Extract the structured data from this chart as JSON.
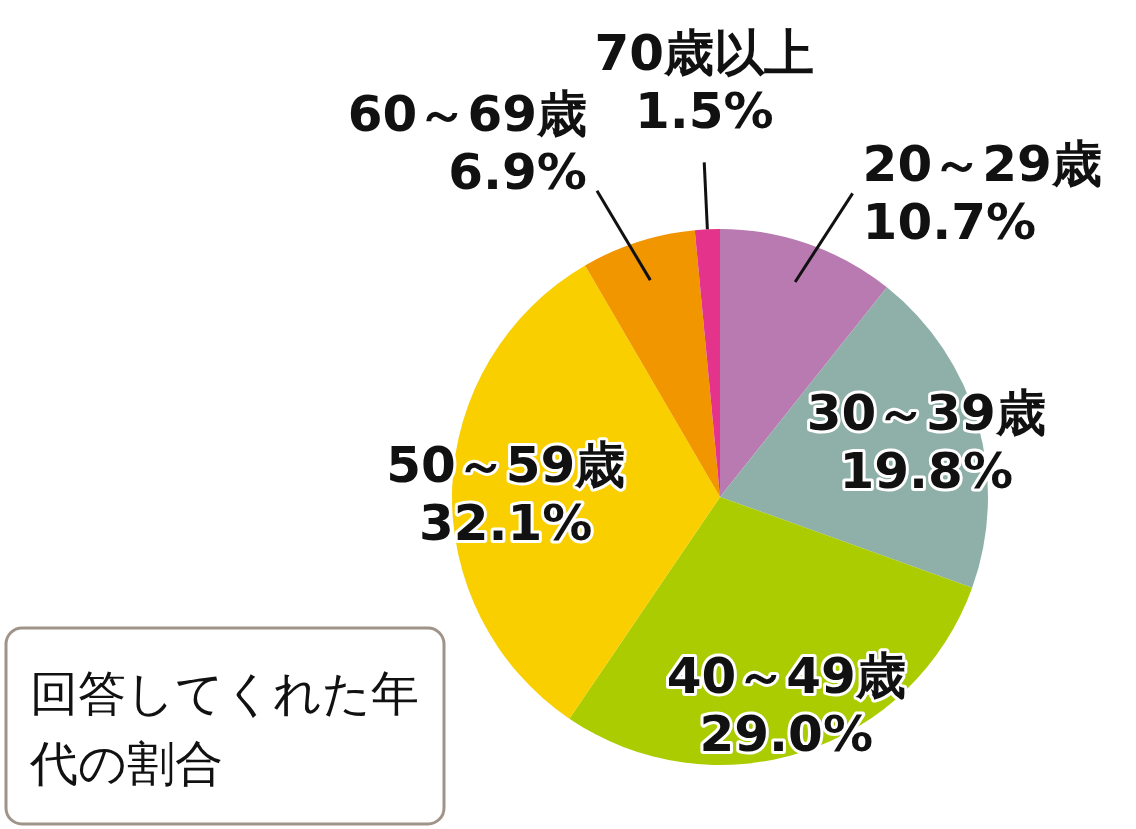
{
  "chart_data": {
    "type": "pie",
    "title": "回答してくれた年代の割合",
    "categories": [
      "20～29歳",
      "30～39歳",
      "40～49歳",
      "50～59歳",
      "60～69歳",
      "70歳以上"
    ],
    "values": [
      10.7,
      19.8,
      29.0,
      32.1,
      6.9,
      1.5
    ],
    "value_labels": [
      "10.7%",
      "19.8%",
      "29.0%",
      "32.1%",
      "6.9%",
      "1.5%"
    ],
    "colors": [
      "#b87ab0",
      "#8fb0a8",
      "#aacc00",
      "#f9cf00",
      "#f29600",
      "#e4338a"
    ]
  }
}
